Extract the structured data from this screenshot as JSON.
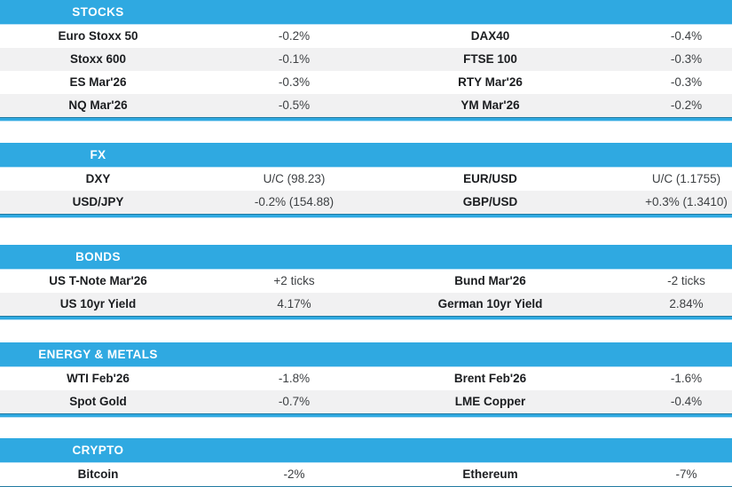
{
  "colors": {
    "accent_blue": "#2FA9E1",
    "row_stripe": "#F1F1F2",
    "divider_edge_blue": "#B5E0F6",
    "header_text": "#FFFFFF"
  },
  "sections": [
    {
      "title": "STOCKS",
      "rows": [
        {
          "cells": [
            "Euro Stoxx 50",
            "-0.2%",
            "DAX40",
            "-0.4%"
          ]
        },
        {
          "cells": [
            "Stoxx 600",
            "-0.1%",
            "FTSE 100",
            "-0.3%"
          ]
        },
        {
          "cells": [
            "ES Mar'26",
            "-0.3%",
            "RTY Mar'26",
            "-0.3%"
          ]
        },
        {
          "cells": [
            "NQ Mar'26",
            "-0.5%",
            "YM Mar'26",
            "-0.2%"
          ]
        }
      ]
    },
    {
      "title": "FX",
      "rows": [
        {
          "cells": [
            "DXY",
            "U/C (98.23)",
            "EUR/USD",
            "U/C (1.1755)"
          ]
        },
        {
          "cells": [
            "USD/JPY",
            "-0.2% (154.88)",
            "GBP/USD",
            "+0.3% (1.3410)"
          ]
        }
      ]
    },
    {
      "title": "BONDS",
      "rows": [
        {
          "cells": [
            "US T-Note Mar'26",
            "+2 ticks",
            "Bund Mar'26",
            "-2 ticks"
          ]
        },
        {
          "cells": [
            "US 10yr Yield",
            "4.17%",
            "German 10yr Yield",
            "2.84%"
          ]
        }
      ]
    },
    {
      "title": "ENERGY & METALS",
      "rows": [
        {
          "cells": [
            "WTI Feb'26",
            "-1.8%",
            "Brent Feb'26",
            "-1.6%"
          ]
        },
        {
          "cells": [
            "Spot Gold",
            "-0.7%",
            "LME Copper",
            "-0.4%"
          ]
        }
      ]
    },
    {
      "title": "CRYPTO",
      "rows": [
        {
          "cells": [
            "Bitcoin",
            "-2%",
            "Ethereum",
            "-7%"
          ]
        }
      ]
    }
  ]
}
